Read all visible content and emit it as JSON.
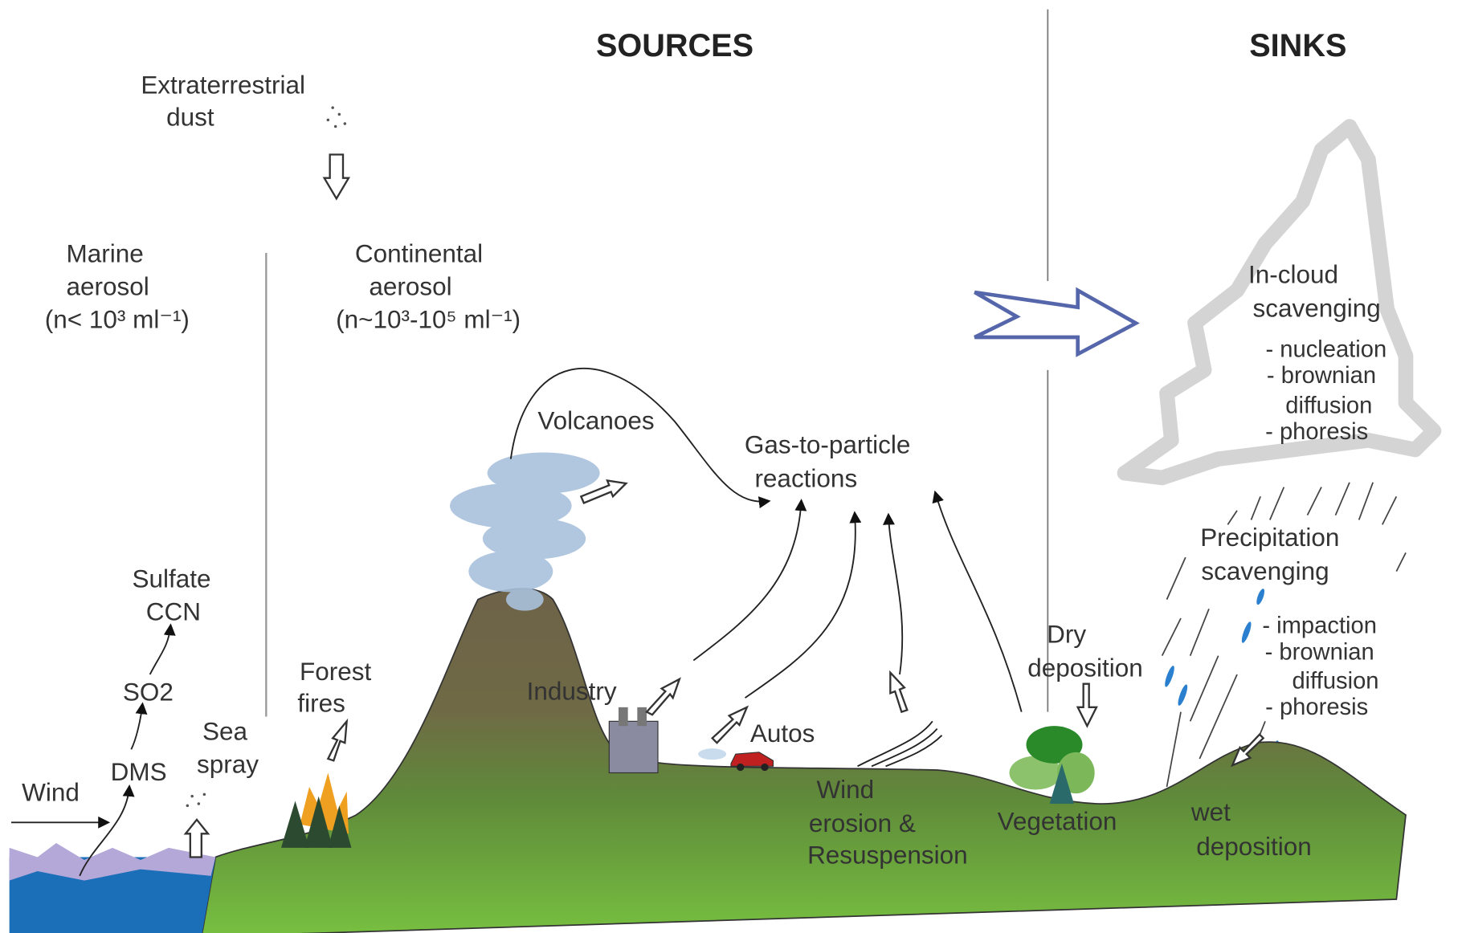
{
  "headings": {
    "sources": "SOURCES",
    "sinks": "SINKS"
  },
  "labels": {
    "extraterrestrial": [
      "Extraterrestrial",
      "dust"
    ],
    "marine": [
      "Marine",
      "aerosol",
      "(n< 10³ ml⁻¹)"
    ],
    "continental": [
      "Continental",
      "aerosol",
      "(n~10³-10⁵ ml⁻¹)"
    ],
    "volcanoes": "Volcanoes",
    "gas_to_particle": [
      "Gas-to-particle",
      "reactions"
    ],
    "in_cloud": [
      "In-cloud",
      "scavenging"
    ],
    "in_cloud_items": [
      "- nucleation",
      "- brownian",
      "diffusion",
      "- phoresis"
    ],
    "precipitation": [
      "Precipitation",
      "scavenging"
    ],
    "precipitation_items": [
      "- impaction",
      "- brownian",
      "diffusion",
      "- phoresis"
    ],
    "sulfate": [
      "Sulfate",
      "CCN"
    ],
    "so2": "SO2",
    "dms": "DMS",
    "wind": "Wind",
    "sea_spray": [
      "Sea",
      "spray"
    ],
    "forest_fires": [
      "Forest",
      "fires"
    ],
    "industry": "Industry",
    "autos": "Autos",
    "dry_deposition": [
      "Dry",
      "deposition"
    ],
    "wind_erosion": [
      "Wind",
      "erosion &",
      "Resuspension"
    ],
    "vegetation": "Vegetation",
    "wet_deposition": [
      "wet",
      "deposition"
    ]
  }
}
